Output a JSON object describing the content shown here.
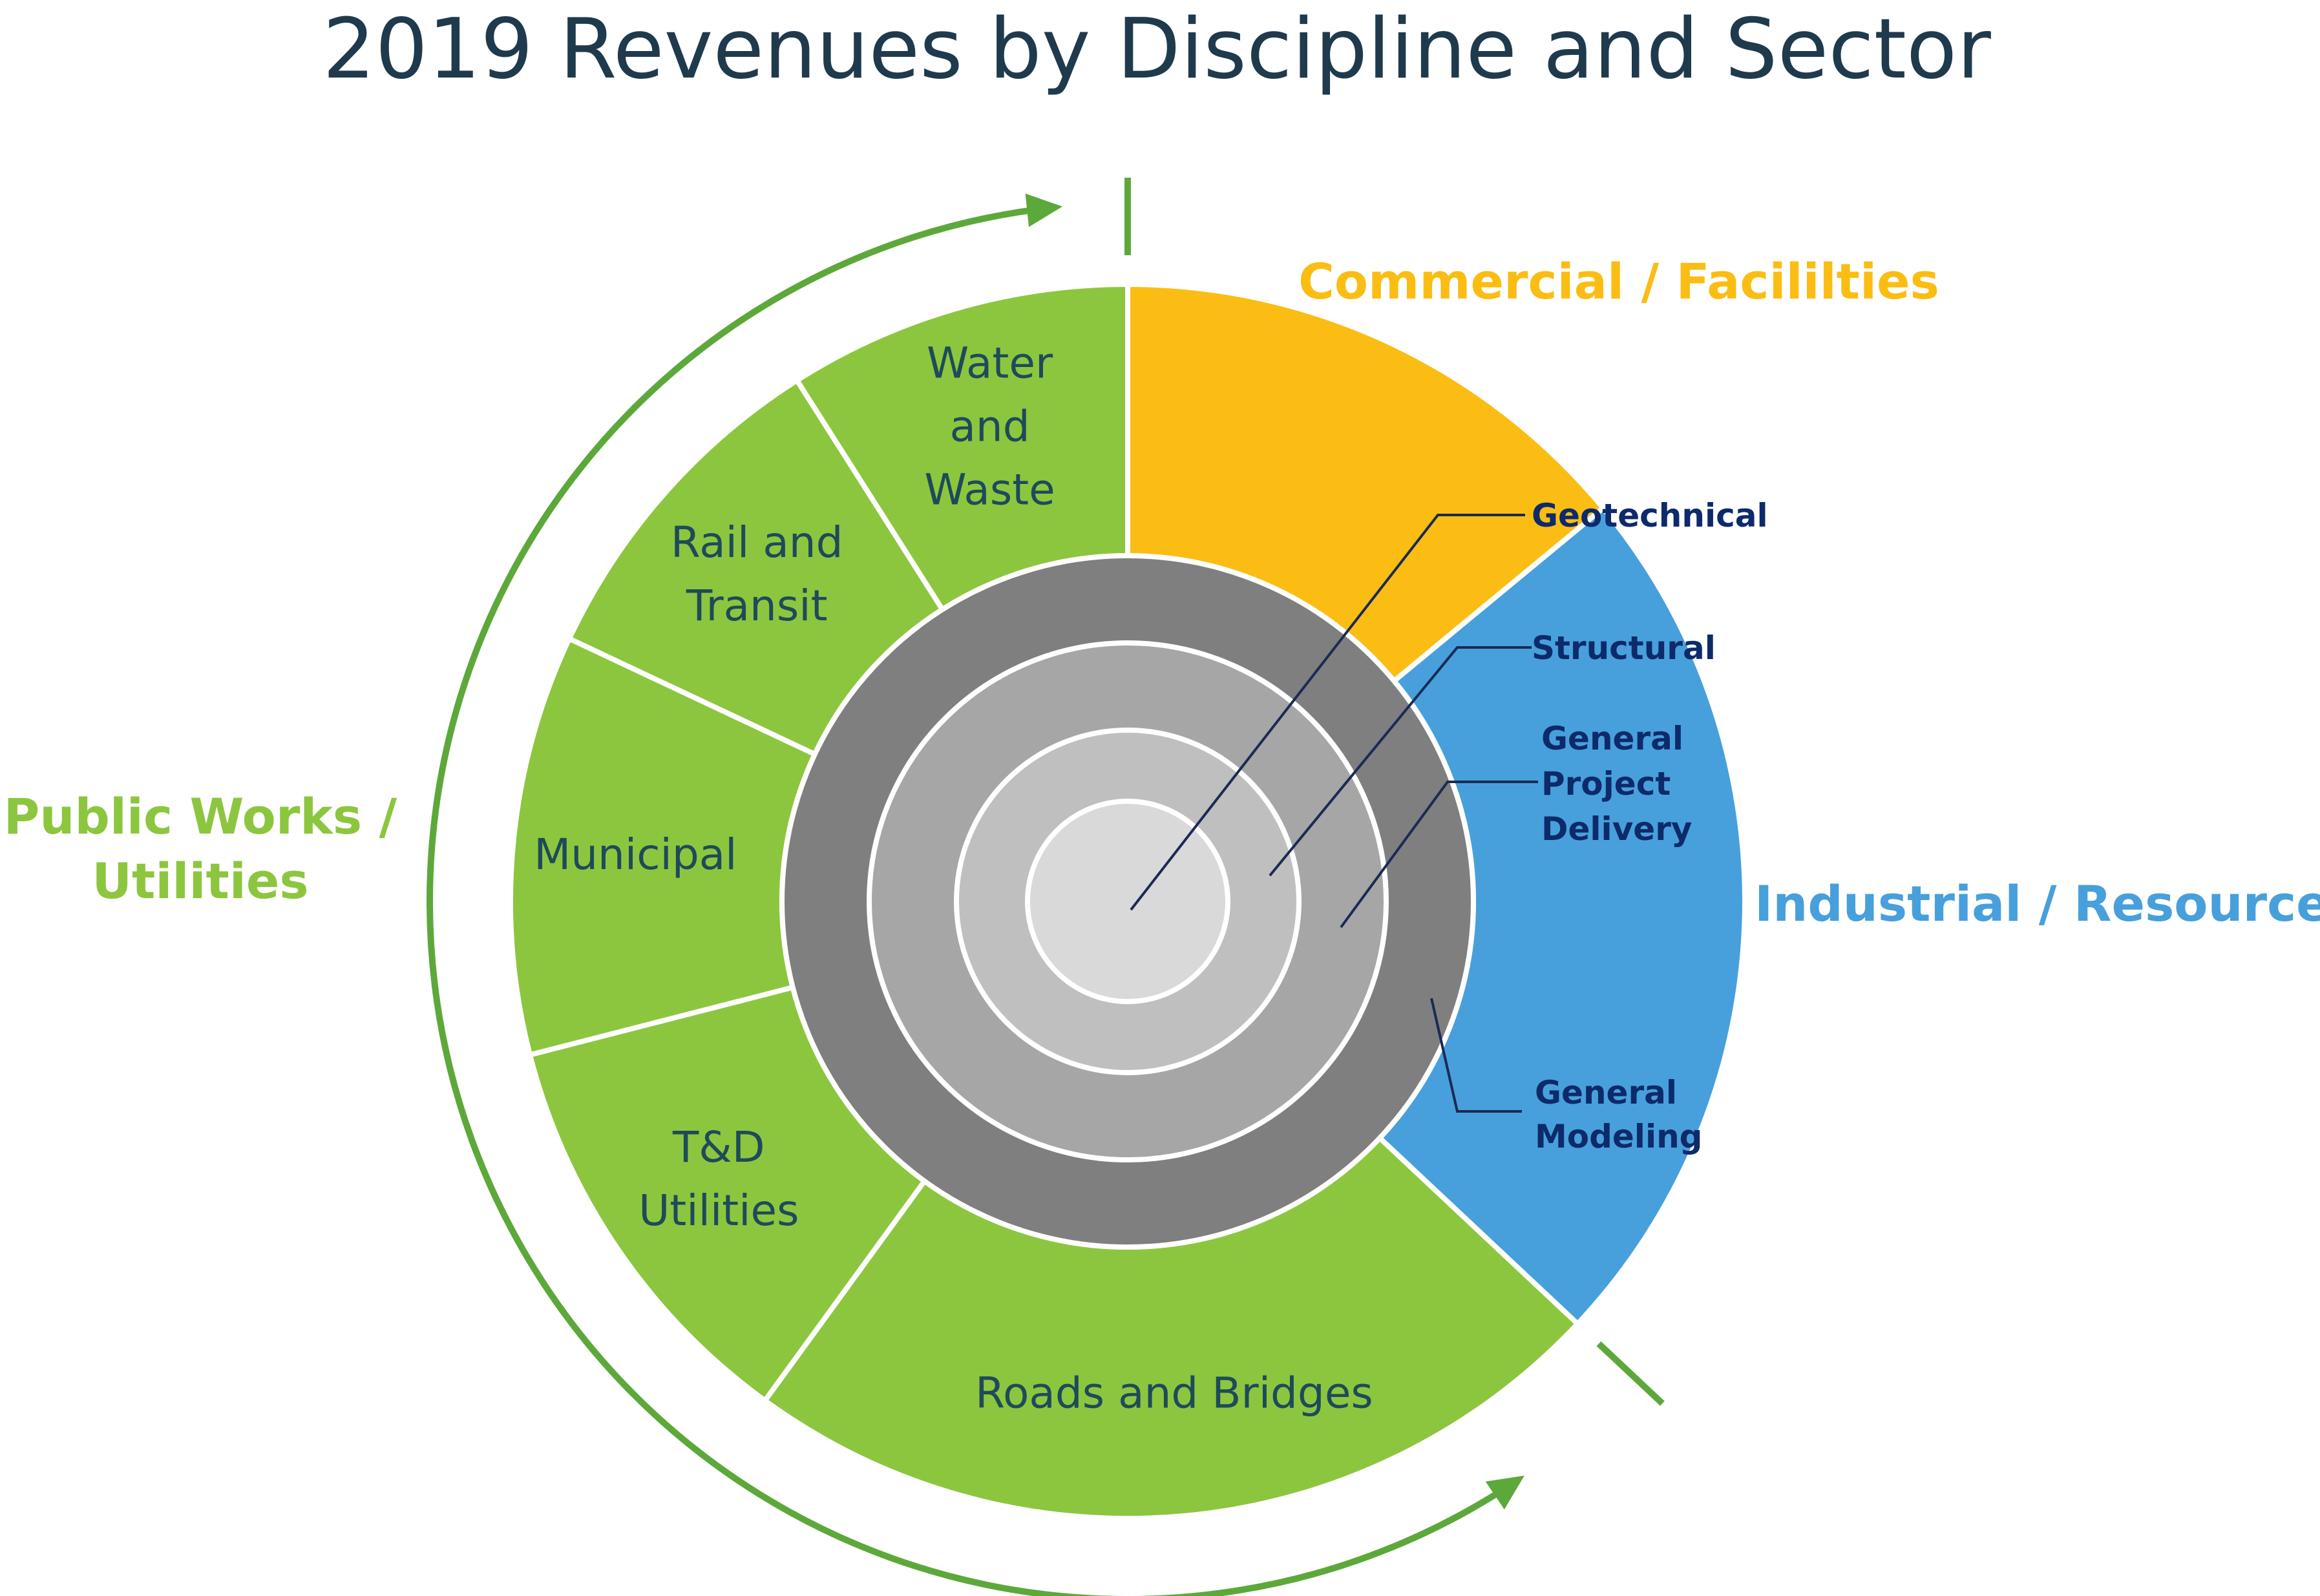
{
  "chart_data": {
    "type": "sunburst",
    "title": "2019 Revenues by Discipline and Sector",
    "sectors": [
      {
        "name": "Commercial / Facililties",
        "color": "#fbbd13"
      },
      {
        "name": "Industrial / Resources",
        "color": "#47a0db"
      },
      {
        "name": "Public Works / Utilities",
        "color": "#8cc63f"
      }
    ],
    "outer_ring": [
      {
        "label": "Commercial / Facililties",
        "sector": "Commercial / Facililties",
        "percent": 14,
        "color": "#fbbd13"
      },
      {
        "label": "Industrial / Resources",
        "sector": "Industrial / Resources",
        "percent": 23,
        "color": "#47a0db"
      },
      {
        "label": "Roads and Bridges",
        "sector": "Public Works / Utilities",
        "percent": 23,
        "color": "#8cc63f"
      },
      {
        "label": "T&D\nUtilities",
        "sector": "Public Works / Utilities",
        "percent": 11,
        "color": "#8cc63f"
      },
      {
        "label": "Municipal",
        "sector": "Public Works / Utilities",
        "percent": 11,
        "color": "#8cc63f"
      },
      {
        "label": "Rail and\nTransit",
        "sector": "Public Works / Utilities",
        "percent": 9,
        "color": "#8cc63f"
      },
      {
        "label": "Water\nand\nWaste",
        "sector": "Public Works / Utilities",
        "percent": 9,
        "color": "#8cc63f"
      }
    ],
    "disciplines": [
      {
        "label": "General\nModeling",
        "color": "#7f7f7f"
      },
      {
        "label": "General\nProject\nDelivery",
        "color": "#a6a6a6"
      },
      {
        "label": "Structural",
        "color": "#bfbfbf"
      },
      {
        "label": "Geotechnical",
        "color": "#d9d9d9"
      }
    ]
  }
}
